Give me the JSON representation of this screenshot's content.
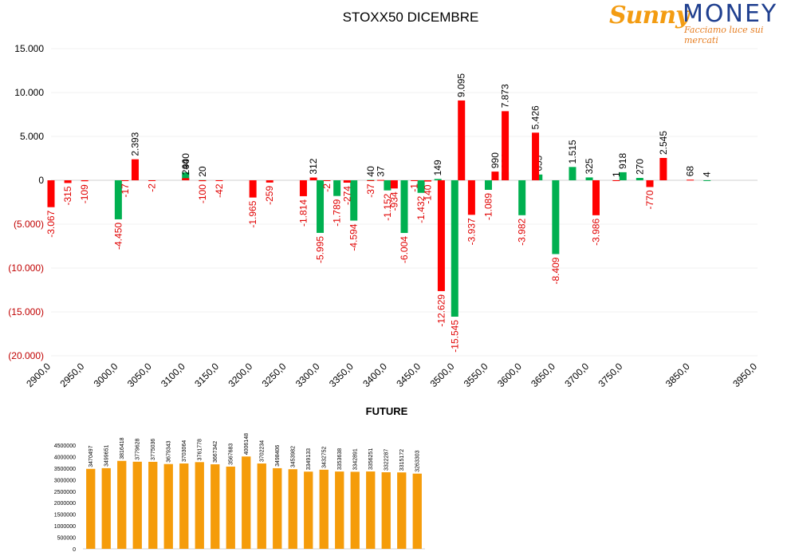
{
  "logo": {
    "sunny": "Sunny",
    "money": "MONEY",
    "tagline": "Facciamo luce sui mercati"
  },
  "colors": {
    "positive": "#00b050",
    "negative": "#ff0000",
    "future_bar": "#f59c0a"
  },
  "chart_data": [
    {
      "type": "bar",
      "title": "STOXX50 DICEMBRE",
      "xlim": [
        2900,
        3950
      ],
      "ylim": [
        -20000,
        15000
      ],
      "y_ticks": [
        15000,
        10000,
        5000,
        0,
        -5000,
        -10000,
        -15000,
        -20000
      ],
      "y_tick_labels": [
        "15.000",
        "10.000",
        "5.000",
        "0",
        "(5.000)",
        "(10.000)",
        "(15.000)",
        "(20.000)"
      ],
      "x_ticks": [
        2900,
        2950,
        3000,
        3050,
        3100,
        3150,
        3200,
        3250,
        3300,
        3350,
        3400,
        3450,
        3500,
        3550,
        3600,
        3650,
        3700,
        3750,
        3850,
        3950
      ],
      "x_tick_labels": [
        "2900,0",
        "2950,0",
        "3000,0",
        "3050,0",
        "3100,0",
        "3150,0",
        "3200,0",
        "3250,0",
        "3300,0",
        "3350,0",
        "3400,0",
        "3450,0",
        "3500,0",
        "3550,0",
        "3600,0",
        "3650,0",
        "3700,0",
        "3750,0",
        "3850,0",
        "3950,0"
      ],
      "grid": true,
      "series": [
        {
          "color": "green",
          "x": [
            3000,
            3100,
            3125,
            3300,
            3325,
            3350,
            3375,
            3400,
            3425,
            3450,
            3475,
            3500,
            3550,
            3575,
            3600,
            3625,
            3650,
            3675,
            3700,
            3750,
            3775,
            3875
          ],
          "values": [
            -4450,
            900,
            20,
            -5995,
            -1789,
            -4594,
            40,
            -1152,
            -6004,
            -1432,
            149,
            -15545,
            -1089,
            931,
            -3982,
            655,
            -8409,
            1515,
            325,
            918,
            270,
            4
          ]
        },
        {
          "color": "red",
          "x": [
            2900,
            2925,
            2950,
            3010,
            3025,
            3050,
            3100,
            3125,
            3150,
            3200,
            3225,
            3275,
            3290,
            3310,
            3340,
            3375,
            3390,
            3410,
            3440,
            3460,
            3480,
            3510,
            3525,
            3560,
            3575,
            3620,
            3710,
            3740,
            3790,
            3810,
            3850
          ],
          "values": [
            -3067,
            -315,
            -109,
            -17,
            2393,
            -2,
            244,
            -100,
            -42,
            -1965,
            -259,
            -1814,
            312,
            -2,
            -274,
            -37,
            37,
            -934,
            -1,
            -140,
            -12629,
            9095,
            -3937,
            990,
            7873,
            5426,
            -3986,
            1,
            -770,
            2545,
            68
          ]
        }
      ]
    },
    {
      "type": "bar",
      "title": "FUTURE",
      "ylim": [
        0,
        4500000
      ],
      "y_ticks": [
        0,
        500000,
        1000000,
        1500000,
        2000000,
        2500000,
        3000000,
        3500000,
        4000000,
        4500000
      ],
      "y_tick_labels": [
        "0",
        "500000",
        "1000000",
        "1500000",
        "2000000",
        "2500000",
        "3000000",
        "3500000",
        "4000000",
        "4500000"
      ],
      "values": [
        3470497,
        3499651,
        3816418,
        3779628,
        3775036,
        3679343,
        3703064,
        3761778,
        3667342,
        3567683,
        4006148,
        3702234,
        3498406,
        3453982,
        3349133,
        3432752,
        3353638,
        3342891,
        3356251,
        3322287,
        3315172,
        3263303
      ]
    }
  ]
}
